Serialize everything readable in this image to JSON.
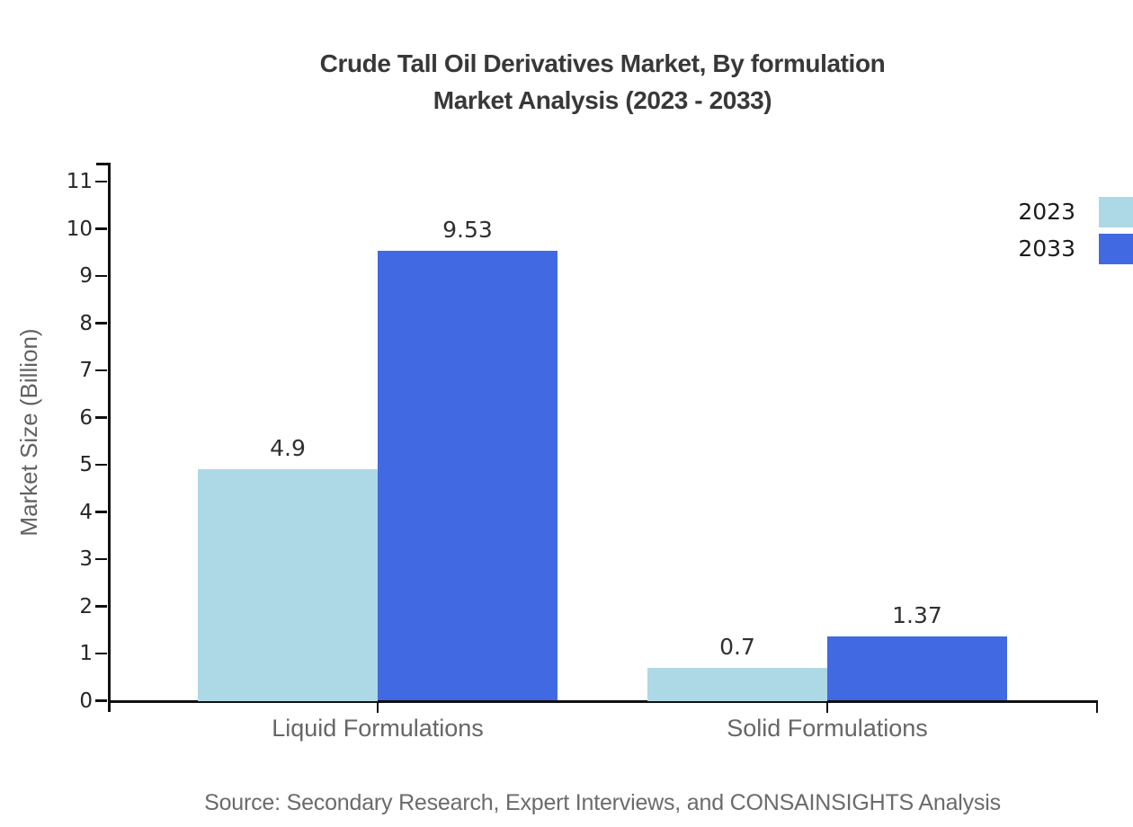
{
  "title": {
    "line1": "Crude Tall Oil Derivatives Market, By formulation",
    "line2": "Market Analysis (2023 - 2033)"
  },
  "source_note": "Source: Secondary Research, Expert Interviews, and CONSAINSIGHTS Analysis",
  "chart_data": {
    "type": "bar",
    "title": "Crude Tall Oil Derivatives Market, By formulation Market Analysis (2023 - 2033)",
    "categories": [
      "Liquid Formulations",
      "Solid Formulations"
    ],
    "series": [
      {
        "name": "2023",
        "color": "#add8e6",
        "values": [
          4.9,
          0.7
        ]
      },
      {
        "name": "2033",
        "color": "#4169e1",
        "values": [
          9.53,
          1.37
        ]
      }
    ],
    "xlabel": "",
    "ylabel": "Market Size (Billion)",
    "ylim": [
      0,
      11
    ],
    "yticks": [
      0,
      1,
      2,
      3,
      4,
      5,
      6,
      7,
      8,
      9,
      10,
      11
    ],
    "grid": false,
    "legend_position": "top-right",
    "bar_value_labels": [
      "4.9",
      "9.53",
      "0.7",
      "1.37"
    ]
  },
  "colors": {
    "axis": "#111111",
    "tick_label": "#262626",
    "category_label": "#666666",
    "value_label": "#303030",
    "title": "#383838",
    "source": "#6b6b6b",
    "series_2023": "#add8e6",
    "series_2033": "#4169e1"
  }
}
